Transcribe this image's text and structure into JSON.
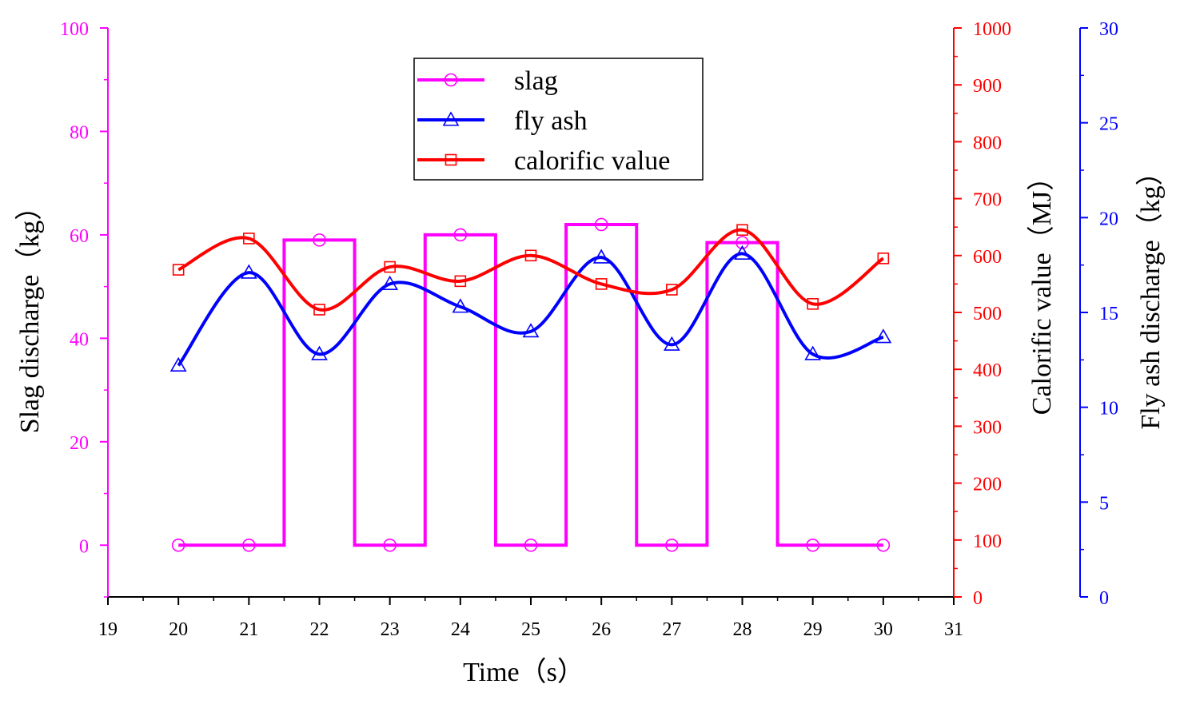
{
  "colors": {
    "slag": "#ff00ff",
    "fly_ash": "#0000ff",
    "calorific": "#ff0000",
    "axis_left": "#ff00ff",
    "axis_right_calorific": "#ff0000",
    "axis_right_flyash": "#0000ff",
    "bottom_axis": "#000000"
  },
  "chart_data": {
    "type": "line",
    "title": "",
    "xlabel": "Time（s）",
    "x_ticks": [
      "19",
      "20",
      "21",
      "22",
      "23",
      "24",
      "25",
      "26",
      "27",
      "28",
      "29",
      "30",
      "31"
    ],
    "xlim": [
      19,
      31
    ],
    "x": [
      20,
      21,
      22,
      23,
      24,
      25,
      26,
      27,
      28,
      29,
      30
    ],
    "axes": {
      "left": {
        "label": "Slag discharge（kg）",
        "ylim": [
          -10,
          100
        ],
        "ticks": [
          "0",
          "20",
          "40",
          "60",
          "80",
          "100"
        ]
      },
      "right_calorific": {
        "label": "Calorific value（MJ）",
        "ylim": [
          0,
          1000
        ],
        "ticks": [
          "0",
          "100",
          "200",
          "300",
          "400",
          "500",
          "600",
          "700",
          "800",
          "900",
          "1000"
        ]
      },
      "right_flyash": {
        "label": "Fly ash discharge（kg）",
        "ylim": [
          0,
          30
        ],
        "ticks": [
          "0",
          "5",
          "10",
          "15",
          "20",
          "25",
          "30"
        ]
      }
    },
    "series": [
      {
        "name": "slag",
        "axis": "left",
        "marker": "circle",
        "style": "step",
        "values": [
          0,
          0,
          59,
          0,
          60,
          0,
          62,
          0,
          58.5,
          0,
          0
        ]
      },
      {
        "name": "fly ash",
        "axis": "right_flyash",
        "marker": "triangle",
        "style": "spline",
        "values": [
          12.2,
          17.1,
          12.8,
          16.5,
          15.3,
          14.0,
          17.9,
          13.3,
          18.1,
          12.8,
          13.7
        ]
      },
      {
        "name": "calorific value",
        "axis": "right_calorific",
        "marker": "square",
        "style": "spline",
        "values": [
          575,
          630,
          505,
          580,
          555,
          600,
          550,
          540,
          645,
          515,
          595
        ]
      }
    ],
    "legend": {
      "position": "top-center",
      "entries": [
        "slag",
        "fly ash",
        "calorific value"
      ]
    }
  }
}
